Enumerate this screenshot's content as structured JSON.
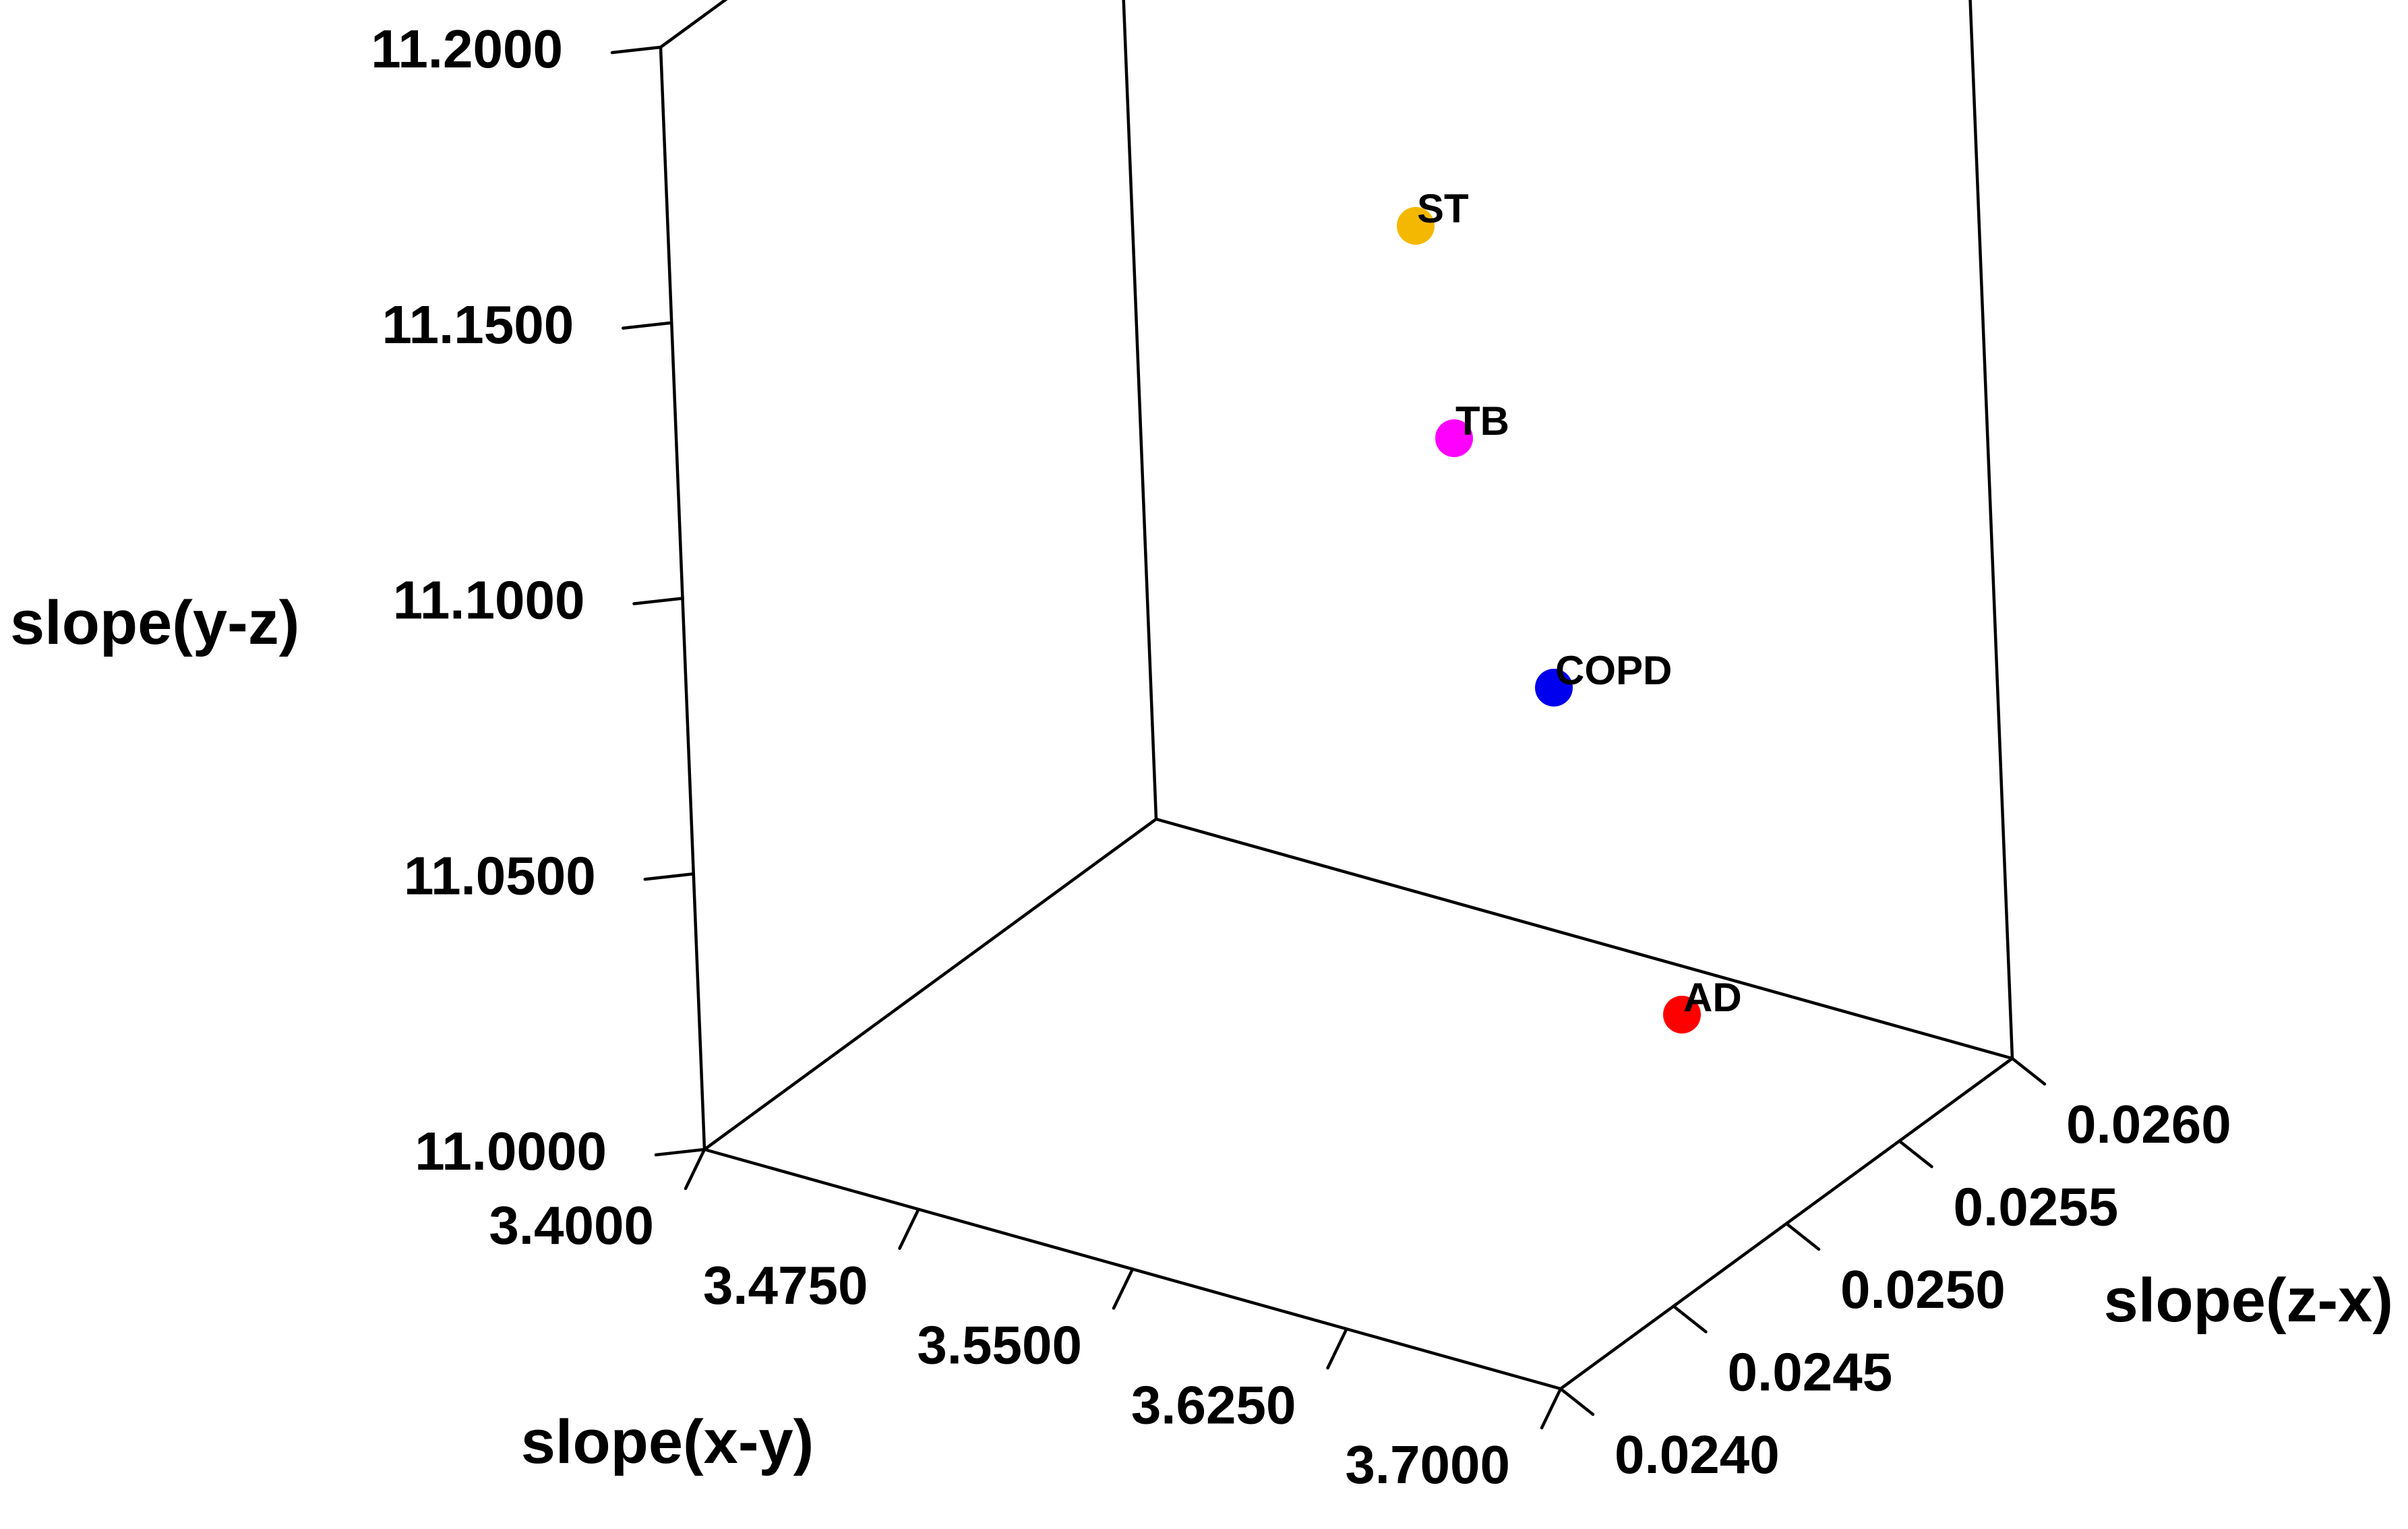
{
  "chart_data": {
    "type": "scatter",
    "projection": "3d",
    "title": "",
    "xlabel": "slope(x-y)",
    "ylabel": "slope(z-x)",
    "zlabel": "slope(y-z)",
    "xlim": [
      3.4,
      3.7
    ],
    "ylim": [
      0.024,
      0.026
    ],
    "zlim": [
      11.0,
      11.2
    ],
    "x_ticks": [
      "3.4000",
      "3.4750",
      "3.5500",
      "3.6250",
      "3.7000"
    ],
    "y_ticks": [
      "0.0240",
      "0.0245",
      "0.0250",
      "0.0255",
      "0.0260"
    ],
    "z_ticks": [
      "11.0000",
      "11.0500",
      "11.1000",
      "11.1500",
      "11.2000"
    ],
    "grid": false,
    "legend": "none",
    "points": [
      {
        "label": "ST",
        "x": 3.4,
        "y": 0.0255,
        "z": 11.2,
        "color": "#f5b800"
      },
      {
        "label": "TB",
        "x": 3.45,
        "y": 0.0255,
        "z": 11.16,
        "color": "#ff00ff"
      },
      {
        "label": "COPD",
        "x": 3.54,
        "y": 0.0254,
        "z": 11.12,
        "color": "#0000ee"
      },
      {
        "label": "AD",
        "x": 3.66,
        "y": 0.0253,
        "z": 11.04,
        "color": "#ff0000"
      }
    ]
  }
}
